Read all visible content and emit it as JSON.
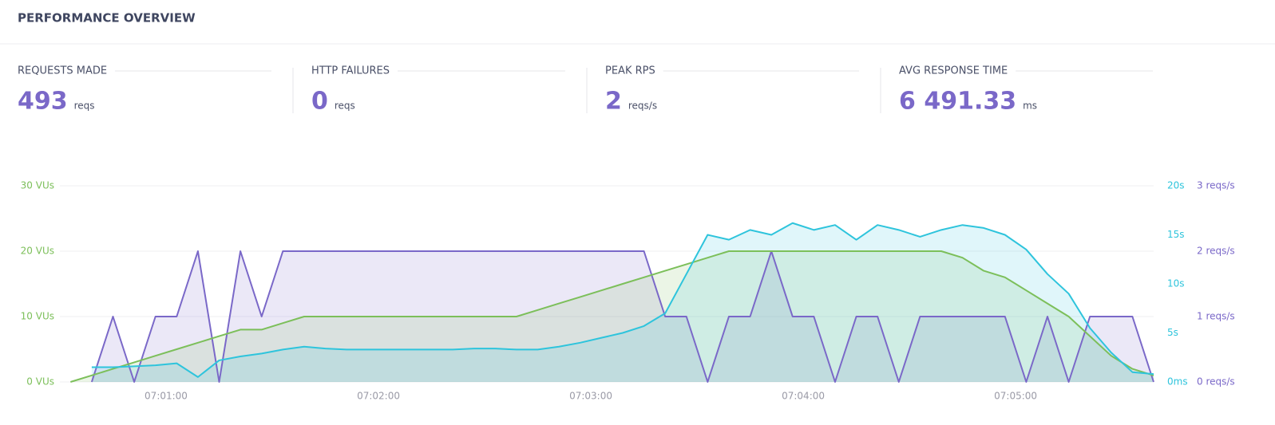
{
  "header": {
    "title": "PERFORMANCE OVERVIEW"
  },
  "stats": [
    {
      "label": "REQUESTS MADE",
      "value": "493",
      "unit": "reqs"
    },
    {
      "label": "HTTP FAILURES",
      "value": "0",
      "unit": "reqs"
    },
    {
      "label": "PEAK RPS",
      "value": "2",
      "unit": "reqs/s"
    },
    {
      "label": "AVG RESPONSE TIME",
      "value": "6 491.33",
      "unit": "ms"
    }
  ],
  "chart_data": {
    "type": "line",
    "x": [
      33,
      39,
      45,
      51,
      57,
      63,
      69,
      75,
      81,
      87,
      93,
      99,
      105,
      111,
      117,
      123,
      129,
      135,
      141,
      147,
      153,
      159,
      165,
      171,
      177,
      183,
      189,
      195,
      201,
      207,
      213,
      219,
      225,
      231,
      237,
      243,
      249,
      255,
      261,
      267,
      273,
      279,
      285,
      291,
      297,
      303,
      309,
      315,
      321,
      327,
      333,
      339
    ],
    "xlim": [
      30,
      339
    ],
    "xticks": [
      {
        "value": 60,
        "label": "07:01:00"
      },
      {
        "value": 120,
        "label": "07:02:00"
      },
      {
        "value": 180,
        "label": "07:03:00"
      },
      {
        "value": 240,
        "label": "07:04:00"
      },
      {
        "value": 300,
        "label": "07:05:00"
      }
    ],
    "ylim": [
      0,
      30
    ],
    "yticks": [
      {
        "value": 0,
        "label": "0 VUs"
      },
      {
        "value": 10,
        "label": "10 VUs"
      },
      {
        "value": 20,
        "label": "20 VUs"
      },
      {
        "value": 30,
        "label": "30 VUs"
      }
    ],
    "y2lim": [
      0,
      20
    ],
    "y2ticks": [
      {
        "value": 0,
        "label": "0ms"
      },
      {
        "value": 5,
        "label": "5s"
      },
      {
        "value": 10,
        "label": "10s"
      },
      {
        "value": 15,
        "label": "15s"
      },
      {
        "value": 20,
        "label": "20s"
      }
    ],
    "y3lim": [
      0,
      3
    ],
    "y3ticks": [
      {
        "value": 0,
        "label": "0 reqs/s"
      },
      {
        "value": 1,
        "label": "1 reqs/s"
      },
      {
        "value": 2,
        "label": "2 reqs/s"
      },
      {
        "value": 3,
        "label": "3 reqs/s"
      }
    ],
    "grid": true,
    "series": [
      {
        "color": "#7a68c8",
        "axis": "y3",
        "values": [
          null,
          0,
          1,
          0,
          1,
          1,
          2,
          0,
          2,
          1,
          2,
          2,
          2,
          2,
          2,
          2,
          2,
          2,
          2,
          2,
          2,
          2,
          2,
          2,
          2,
          2,
          2,
          2,
          1,
          1,
          0,
          1,
          1,
          2,
          1,
          1,
          0,
          1,
          1,
          0,
          1,
          1,
          1,
          1,
          1,
          0,
          1,
          0,
          1,
          1,
          1,
          0
        ]
      },
      {
        "color": "#7cbf5a",
        "values": [
          0,
          1,
          2,
          3,
          4,
          5,
          6,
          7,
          8,
          8,
          9,
          10,
          10,
          10,
          10,
          10,
          10,
          10,
          10,
          10,
          10,
          10,
          11,
          12,
          13,
          14,
          15,
          16,
          17,
          18,
          19,
          20,
          20,
          20,
          20,
          20,
          20,
          20,
          20,
          20,
          20,
          20,
          19,
          17,
          16,
          14,
          12,
          10,
          7,
          4,
          2,
          1
        ]
      },
      {
        "color": "#2ec4dc",
        "axis": "y2",
        "values": [
          null,
          1.5,
          1.5,
          1.6,
          1.7,
          1.9,
          0.5,
          2.2,
          2.6,
          2.9,
          3.3,
          3.6,
          3.4,
          3.3,
          3.3,
          3.3,
          3.3,
          3.3,
          3.3,
          3.4,
          3.4,
          3.3,
          3.3,
          3.6,
          4.0,
          4.5,
          5.0,
          5.7,
          7.0,
          11.0,
          15.0,
          14.5,
          15.5,
          15.0,
          16.2,
          15.5,
          16.0,
          14.5,
          16.0,
          15.5,
          14.8,
          15.5,
          16.0,
          15.7,
          15.0,
          13.5,
          11.0,
          9.0,
          5.5,
          3.0,
          1.0,
          0.8
        ]
      }
    ]
  }
}
